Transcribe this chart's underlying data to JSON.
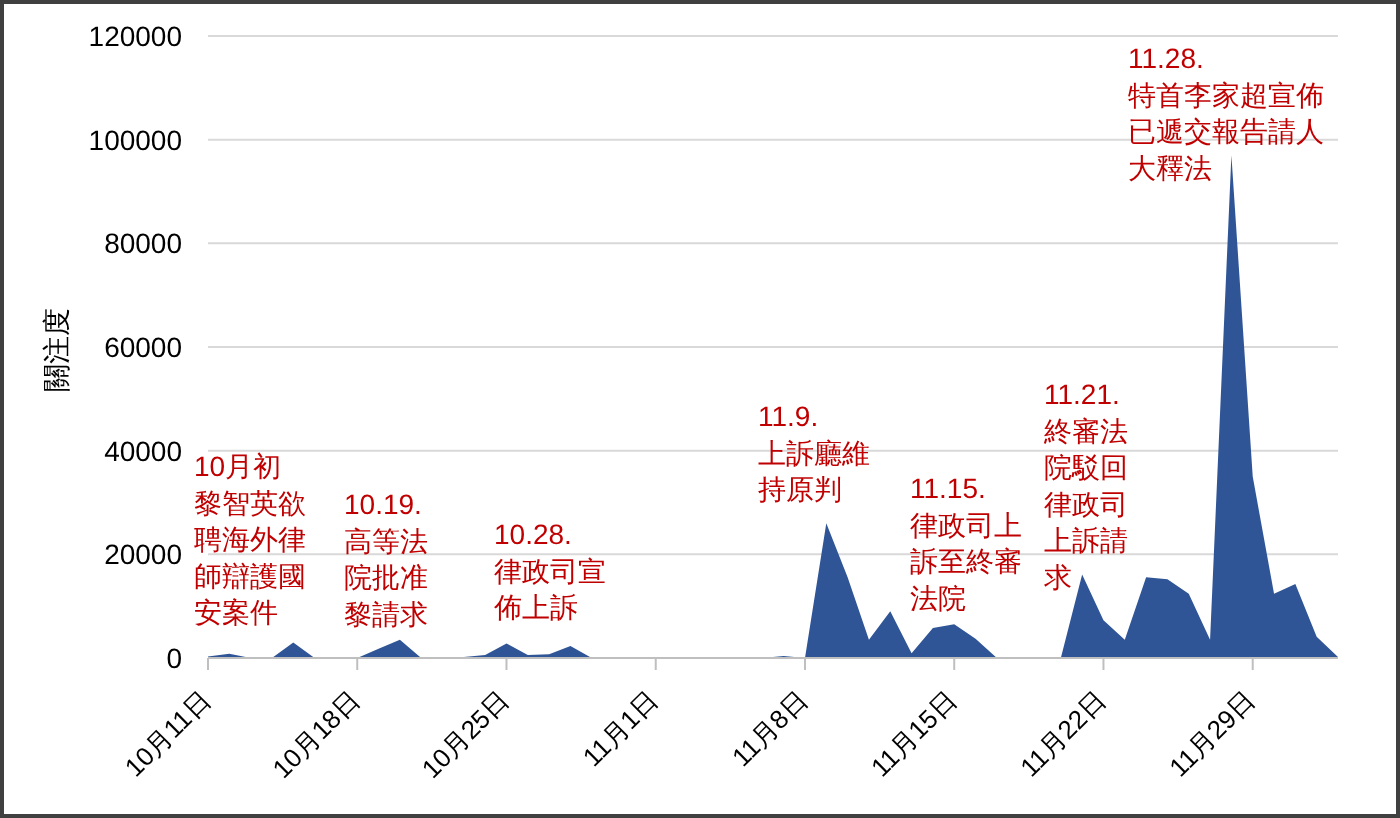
{
  "chart_data": {
    "type": "area",
    "ylabel": "關注度",
    "x": [
      "--10-11",
      "--10-12",
      "--10-13",
      "--10-14",
      "--10-15",
      "--10-16",
      "--10-17",
      "--10-18",
      "--10-19",
      "--10-20",
      "--10-21",
      "--10-22",
      "--10-23",
      "--10-24",
      "--10-25",
      "--10-26",
      "--10-27",
      "--10-28",
      "--10-29",
      "--10-30",
      "--10-31",
      "--11-01",
      "--11-02",
      "--11-03",
      "--11-04",
      "--11-05",
      "--11-06",
      "--11-07",
      "--11-08",
      "--11-09",
      "--11-10",
      "--11-11",
      "--11-12",
      "--11-13",
      "--11-14",
      "--11-15",
      "--11-16",
      "--11-17",
      "--11-18",
      "--11-19",
      "--11-20",
      "--11-21",
      "--11-22",
      "--11-23",
      "--11-24",
      "--11-25",
      "--11-26",
      "--11-27",
      "--11-28",
      "--11-29",
      "--11-30",
      "--12-01",
      "--12-02",
      "--12-03"
    ],
    "values": [
      300,
      800,
      0,
      0,
      3000,
      0,
      0,
      0,
      1800,
      3500,
      0,
      0,
      200,
      600,
      2800,
      600,
      700,
      2300,
      0,
      0,
      0,
      0,
      0,
      0,
      0,
      0,
      0,
      400,
      0,
      26000,
      15600,
      3500,
      9000,
      900,
      5800,
      6500,
      3700,
      0,
      0,
      0,
      0,
      16100,
      7300,
      3500,
      15600,
      15200,
      12400,
      3500,
      97000,
      35000,
      12400,
      14300,
      4100,
      200
    ],
    "color": "#2f5597",
    "xlim": [
      "--10-11",
      "--12-03"
    ],
    "xticks": [
      {
        "value": "--10-11",
        "label": "10月11日"
      },
      {
        "value": "--10-18",
        "label": "10月18日"
      },
      {
        "value": "--10-25",
        "label": "10月25日"
      },
      {
        "value": "--11-01",
        "label": "11月1日"
      },
      {
        "value": "--11-08",
        "label": "11月8日"
      },
      {
        "value": "--11-15",
        "label": "11月15日"
      },
      {
        "value": "--11-22",
        "label": "11月22日"
      },
      {
        "value": "--11-29",
        "label": "11月29日"
      }
    ],
    "ylim": [
      0,
      120000
    ],
    "yticks": [
      0,
      20000,
      40000,
      60000,
      80000,
      100000,
      120000
    ],
    "grid": "y",
    "annotations": [
      "10月初黎智英欲聘海外律師辯護國安案件",
      "10.19.\n高等法院批准黎請求",
      "10.28.\n律政司宣佈上訴",
      "11.9.\n上訴廳維持原判",
      "11.15.\n律政司上訴至終審法院",
      "11.21.\n終審法院駁回律政司上訴請求",
      "11.28.\n特首李家超宣佈已遞交報告請人大釋法"
    ]
  }
}
